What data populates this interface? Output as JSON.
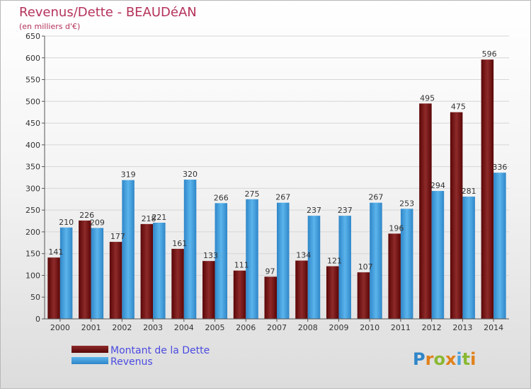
{
  "chart_data": {
    "type": "bar",
    "title": "Revenus/Dette - BEAUDéAN",
    "subtitle": "(en milliers d'€)",
    "categories": [
      "2000",
      "2001",
      "2002",
      "2003",
      "2004",
      "2005",
      "2006",
      "2007",
      "2008",
      "2009",
      "2010",
      "2011",
      "2012",
      "2013",
      "2014"
    ],
    "series": [
      {
        "name": "Montant de la Dette",
        "color": "#7a1212",
        "values": [
          141,
          226,
          177,
          218,
          161,
          133,
          111,
          97,
          134,
          121,
          107,
          196,
          495,
          475,
          596
        ]
      },
      {
        "name": "Revenus",
        "color": "#4aa3e0",
        "values": [
          210,
          209,
          319,
          221,
          320,
          266,
          275,
          267,
          237,
          237,
          267,
          253,
          294,
          281,
          336
        ]
      }
    ],
    "ylim": [
      0,
      650
    ],
    "yticks": [
      0,
      50,
      100,
      150,
      200,
      250,
      300,
      350,
      400,
      450,
      500,
      550,
      600,
      650
    ],
    "grid": true,
    "legend_position": "bottom-left"
  },
  "brand": {
    "logo_text": "Proxiti"
  }
}
